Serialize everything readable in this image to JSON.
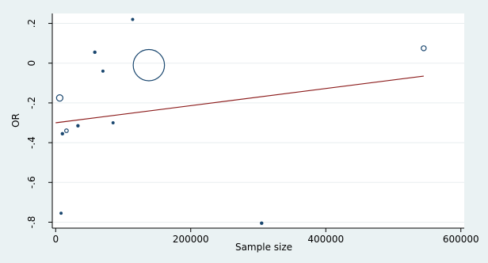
{
  "chart_data": {
    "type": "scatter",
    "xlabel": "Sample size",
    "ylabel": "OR",
    "xlim": [
      -5000,
      605000
    ],
    "ylim": [
      -0.83,
      0.25
    ],
    "x_ticks": [
      0,
      200000,
      400000,
      600000
    ],
    "x_tick_labels": [
      "0",
      "200000",
      "400000",
      "600000"
    ],
    "y_ticks": [
      0.2,
      0,
      -0.2,
      -0.4,
      -0.6,
      -0.8
    ],
    "y_tick_labels": [
      ".2",
      "0",
      "-.2",
      "-.4",
      "-.6",
      "-.8"
    ],
    "grid": "horizontal",
    "colors": {
      "background": "#eaf2f3",
      "plot_background": "#ffffff",
      "grid": "#e8eeef",
      "marker": "#1a476f",
      "fit_line": "#8b1a1a"
    },
    "points": [
      {
        "x": 114000,
        "y": 0.22,
        "weight": 0.5
      },
      {
        "x": 58000,
        "y": 0.055,
        "weight": 0.6
      },
      {
        "x": 70000,
        "y": -0.04,
        "weight": 0.5
      },
      {
        "x": 138000,
        "y": -0.01,
        "weight": 60
      },
      {
        "x": 545000,
        "y": 0.075,
        "weight": 1.5
      },
      {
        "x": 6000,
        "y": -0.175,
        "weight": 2.5
      },
      {
        "x": 85000,
        "y": -0.3,
        "weight": 0.5
      },
      {
        "x": 33000,
        "y": -0.315,
        "weight": 0.6
      },
      {
        "x": 16000,
        "y": -0.34,
        "weight": 0.8
      },
      {
        "x": 10000,
        "y": -0.355,
        "weight": 0.6
      },
      {
        "x": 8000,
        "y": -0.755,
        "weight": 0.5
      },
      {
        "x": 305000,
        "y": -0.805,
        "weight": 0.6
      }
    ],
    "fit_line": {
      "x": [
        0,
        545000
      ],
      "y": [
        -0.3,
        -0.065
      ]
    }
  }
}
